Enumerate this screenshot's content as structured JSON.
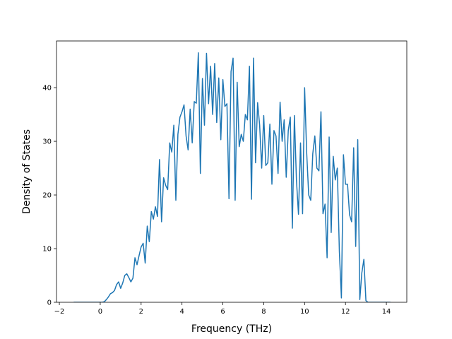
{
  "chart_data": {
    "type": "line",
    "xlabel": "Frequency (THz)",
    "ylabel": "Density of States",
    "color": "#1f77b4",
    "x": [
      -1.3,
      -1.2,
      -1.1,
      -1.0,
      -0.9,
      -0.8,
      -0.7,
      -0.6,
      -0.5,
      -0.4,
      -0.3,
      -0.2,
      -0.1,
      0.0,
      0.1,
      0.2,
      0.3,
      0.4,
      0.5,
      0.6,
      0.7,
      0.8,
      0.9,
      1.0,
      1.1,
      1.2,
      1.3,
      1.4,
      1.5,
      1.6,
      1.7,
      1.8,
      1.9,
      2.0,
      2.1,
      2.2,
      2.3,
      2.4,
      2.5,
      2.6,
      2.7,
      2.8,
      2.9,
      3.0,
      3.1,
      3.2,
      3.3,
      3.4,
      3.5,
      3.6,
      3.7,
      3.8,
      3.9,
      4.0,
      4.1,
      4.2,
      4.3,
      4.4,
      4.5,
      4.6,
      4.7,
      4.8,
      4.9,
      5.0,
      5.1,
      5.2,
      5.3,
      5.4,
      5.5,
      5.6,
      5.7,
      5.8,
      5.9,
      6.0,
      6.1,
      6.2,
      6.3,
      6.4,
      6.5,
      6.6,
      6.7,
      6.8,
      6.9,
      7.0,
      7.1,
      7.2,
      7.3,
      7.4,
      7.5,
      7.6,
      7.7,
      7.8,
      7.9,
      8.0,
      8.1,
      8.2,
      8.3,
      8.4,
      8.5,
      8.6,
      8.7,
      8.8,
      8.9,
      9.0,
      9.1,
      9.2,
      9.3,
      9.4,
      9.5,
      9.6,
      9.7,
      9.8,
      9.9,
      10.0,
      10.1,
      10.2,
      10.3,
      10.4,
      10.5,
      10.6,
      10.7,
      10.8,
      10.9,
      11.0,
      11.1,
      11.2,
      11.3,
      11.4,
      11.5,
      11.6,
      11.7,
      11.8,
      11.9,
      12.0,
      12.1,
      12.2,
      12.3,
      12.4,
      12.5,
      12.6,
      12.7,
      12.8,
      12.9,
      13.0,
      13.1,
      13.2,
      13.3,
      13.4,
      13.5,
      13.6,
      13.7,
      13.8,
      13.9,
      14.0,
      14.1,
      14.2
    ],
    "values": [
      0,
      0,
      0,
      0,
      0,
      0,
      0,
      0,
      0,
      0,
      0,
      0,
      0,
      0,
      0,
      0.1,
      0.5,
      1.0,
      1.6,
      1.8,
      2.2,
      3.3,
      3.8,
      2.6,
      3.6,
      5.0,
      5.3,
      4.6,
      3.8,
      4.5,
      8.3,
      7.0,
      8.7,
      10.3,
      11.0,
      7.3,
      14.2,
      11.3,
      16.9,
      15.5,
      17.8,
      16.0,
      26.6,
      15.0,
      23.2,
      21.8,
      21.0,
      29.7,
      28.0,
      33.0,
      19.0,
      31.3,
      34.5,
      35.5,
      36.8,
      31.0,
      28.4,
      36.0,
      29.7,
      37.4,
      37.1,
      46.5,
      24.0,
      41.7,
      33.0,
      46.4,
      37.0,
      44.0,
      35.0,
      44.5,
      33.5,
      41.8,
      30.3,
      41.5,
      36.5,
      37.0,
      19.3,
      43.0,
      45.5,
      19.0,
      41.0,
      29.0,
      31.3,
      30.0,
      35.0,
      34.0,
      44.0,
      19.2,
      45.5,
      26.0,
      37.2,
      33.0,
      25.0,
      34.8,
      25.5,
      26.0,
      33.2,
      22.0,
      32.0,
      31.0,
      24.0,
      37.3,
      30.0,
      34.0,
      23.3,
      32.0,
      34.5,
      13.8,
      34.8,
      22.8,
      16.4,
      29.7,
      16.5,
      40.0,
      28.0,
      20.0,
      19.0,
      27.7,
      31.0,
      25.0,
      24.5,
      35.5,
      16.5,
      18.3,
      8.3,
      30.8,
      13.0,
      27.2,
      22.8,
      25.0,
      9.5,
      0.8,
      27.5,
      22.0,
      22.0,
      16.3,
      15.0,
      28.8,
      10.4,
      30.3,
      0.5,
      5.5,
      8.0,
      0.3,
      0,
      0,
      0,
      0,
      0,
      0,
      0,
      0,
      0,
      0,
      0,
      0
    ],
    "xlim": [
      -2.14,
      15.0
    ],
    "ylim": [
      0,
      48.7
    ],
    "xticks": [
      {
        "value": -2,
        "label": "−2"
      },
      0,
      2,
      4,
      6,
      8,
      10,
      12,
      14
    ],
    "yticks": [
      0,
      10,
      20,
      30,
      40
    ]
  }
}
